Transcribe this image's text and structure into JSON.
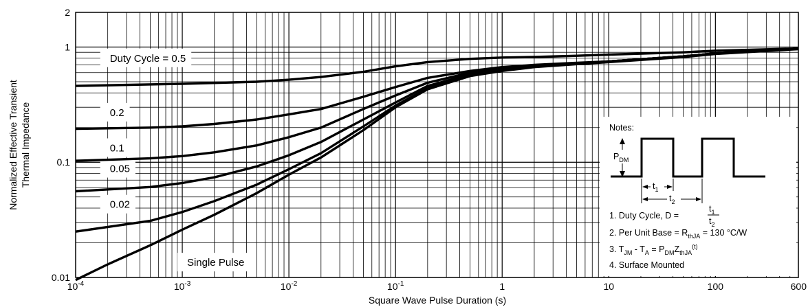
{
  "chart_data": {
    "type": "line",
    "xlabel": "Square Wave Pulse Duration (s)",
    "ylabel_lines": [
      "Normalized Effective Transient",
      "Thermal Impedance"
    ],
    "x_scale": "log",
    "y_scale": "log",
    "xlim": [
      0.0001,
      600
    ],
    "ylim": [
      0.01,
      2
    ],
    "grid": true,
    "x_ticks": [
      {
        "value": 0.0001,
        "base": "10",
        "exp": "-4"
      },
      {
        "value": 0.001,
        "base": "10",
        "exp": "-3"
      },
      {
        "value": 0.01,
        "base": "10",
        "exp": "-2"
      },
      {
        "value": 0.1,
        "base": "10",
        "exp": "-1"
      },
      {
        "value": 1,
        "base": "1",
        "exp": ""
      },
      {
        "value": 10,
        "base": "10",
        "exp": ""
      },
      {
        "value": 100,
        "base": "100",
        "exp": ""
      },
      {
        "value": 600,
        "base": "600",
        "exp": ""
      }
    ],
    "y_ticks": [
      {
        "value": 0.01,
        "label": "0.01"
      },
      {
        "value": 0.1,
        "label": "0.1"
      },
      {
        "value": 1,
        "label": "1"
      },
      {
        "value": 2,
        "label": "2"
      }
    ],
    "series": [
      {
        "name": "Duty Cycle = 0.5",
        "label_pos": [
          0.00017,
          0.8
        ],
        "x": [
          0.0001,
          0.001,
          0.005,
          0.01,
          0.02,
          0.05,
          0.1,
          0.2,
          0.5,
          1,
          2,
          5,
          10,
          50,
          100,
          600
        ],
        "y": [
          0.46,
          0.48,
          0.5,
          0.52,
          0.55,
          0.61,
          0.68,
          0.74,
          0.79,
          0.81,
          0.82,
          0.84,
          0.86,
          0.9,
          0.93,
          0.97
        ]
      },
      {
        "name": "0.2",
        "label_pos": [
          0.00017,
          0.27
        ],
        "x": [
          0.0001,
          0.0005,
          0.001,
          0.002,
          0.005,
          0.01,
          0.02,
          0.05,
          0.1,
          0.2,
          0.5,
          1,
          2,
          5,
          10,
          50,
          100,
          600
        ],
        "y": [
          0.195,
          0.2,
          0.205,
          0.215,
          0.235,
          0.26,
          0.29,
          0.37,
          0.45,
          0.54,
          0.62,
          0.67,
          0.7,
          0.73,
          0.75,
          0.83,
          0.88,
          0.97
        ]
      },
      {
        "name": "0.1",
        "label_pos": [
          0.00017,
          0.133
        ],
        "x": [
          0.0001,
          0.0005,
          0.001,
          0.002,
          0.005,
          0.01,
          0.02,
          0.05,
          0.1,
          0.2,
          0.5,
          1,
          2,
          5,
          10,
          50,
          100,
          600
        ],
        "y": [
          0.103,
          0.108,
          0.113,
          0.122,
          0.14,
          0.165,
          0.2,
          0.29,
          0.38,
          0.49,
          0.6,
          0.65,
          0.69,
          0.72,
          0.75,
          0.83,
          0.88,
          0.97
        ]
      },
      {
        "name": "0.05",
        "label_pos": [
          0.00017,
          0.088
        ],
        "x": [
          0.0001,
          0.0005,
          0.001,
          0.002,
          0.005,
          0.01,
          0.02,
          0.05,
          0.1,
          0.2,
          0.5,
          1,
          2,
          5,
          10,
          50,
          100,
          600
        ],
        "y": [
          0.056,
          0.061,
          0.066,
          0.074,
          0.092,
          0.115,
          0.15,
          0.235,
          0.33,
          0.46,
          0.58,
          0.64,
          0.68,
          0.72,
          0.75,
          0.83,
          0.88,
          0.97
        ]
      },
      {
        "name": "0.02",
        "label_pos": [
          0.00017,
          0.043
        ],
        "x": [
          0.0001,
          0.0005,
          0.001,
          0.002,
          0.005,
          0.01,
          0.02,
          0.05,
          0.1,
          0.2,
          0.5,
          1,
          2,
          5,
          10,
          50,
          100,
          600
        ],
        "y": [
          0.025,
          0.031,
          0.037,
          0.046,
          0.064,
          0.087,
          0.12,
          0.205,
          0.31,
          0.44,
          0.57,
          0.63,
          0.68,
          0.72,
          0.75,
          0.83,
          0.88,
          0.97
        ]
      },
      {
        "name": "Single Pulse",
        "label_pos": [
          0.0009,
          0.0135
        ],
        "x": [
          0.0001,
          0.0002,
          0.0005,
          0.001,
          0.002,
          0.005,
          0.01,
          0.02,
          0.05,
          0.1,
          0.2,
          0.5,
          1,
          2,
          5,
          10,
          50,
          100,
          600
        ],
        "y": [
          0.0095,
          0.013,
          0.019,
          0.026,
          0.035,
          0.054,
          0.078,
          0.11,
          0.19,
          0.3,
          0.43,
          0.56,
          0.62,
          0.67,
          0.71,
          0.74,
          0.82,
          0.87,
          0.96
        ]
      }
    ]
  },
  "notes": {
    "title": "Notes:",
    "pdm_main": "P",
    "pdm_sub": "DM",
    "t1_main": "t",
    "t1_sub": "1",
    "t2_main": "t",
    "t2_sub": "2",
    "note1_text": "1. Duty Cycle, D = ",
    "note1_num_main": "t",
    "note1_num_sub": "1",
    "note1_den_main": "t",
    "note1_den_sub": "2",
    "note2_a": "2. Per Unit Base = R",
    "note2_sub": "thJA",
    "note2_b": " = 130 °C/W",
    "note3_a": "3. T",
    "note3_sub1": "JM",
    "note3_b": " - T",
    "note3_sub2": "A",
    "note3_c": " = P",
    "note3_sub3": "DM",
    "note3_d": "Z",
    "note3_sub4": "thJA",
    "note3_sup": "(t)",
    "note4": "4. Surface Mounted"
  }
}
